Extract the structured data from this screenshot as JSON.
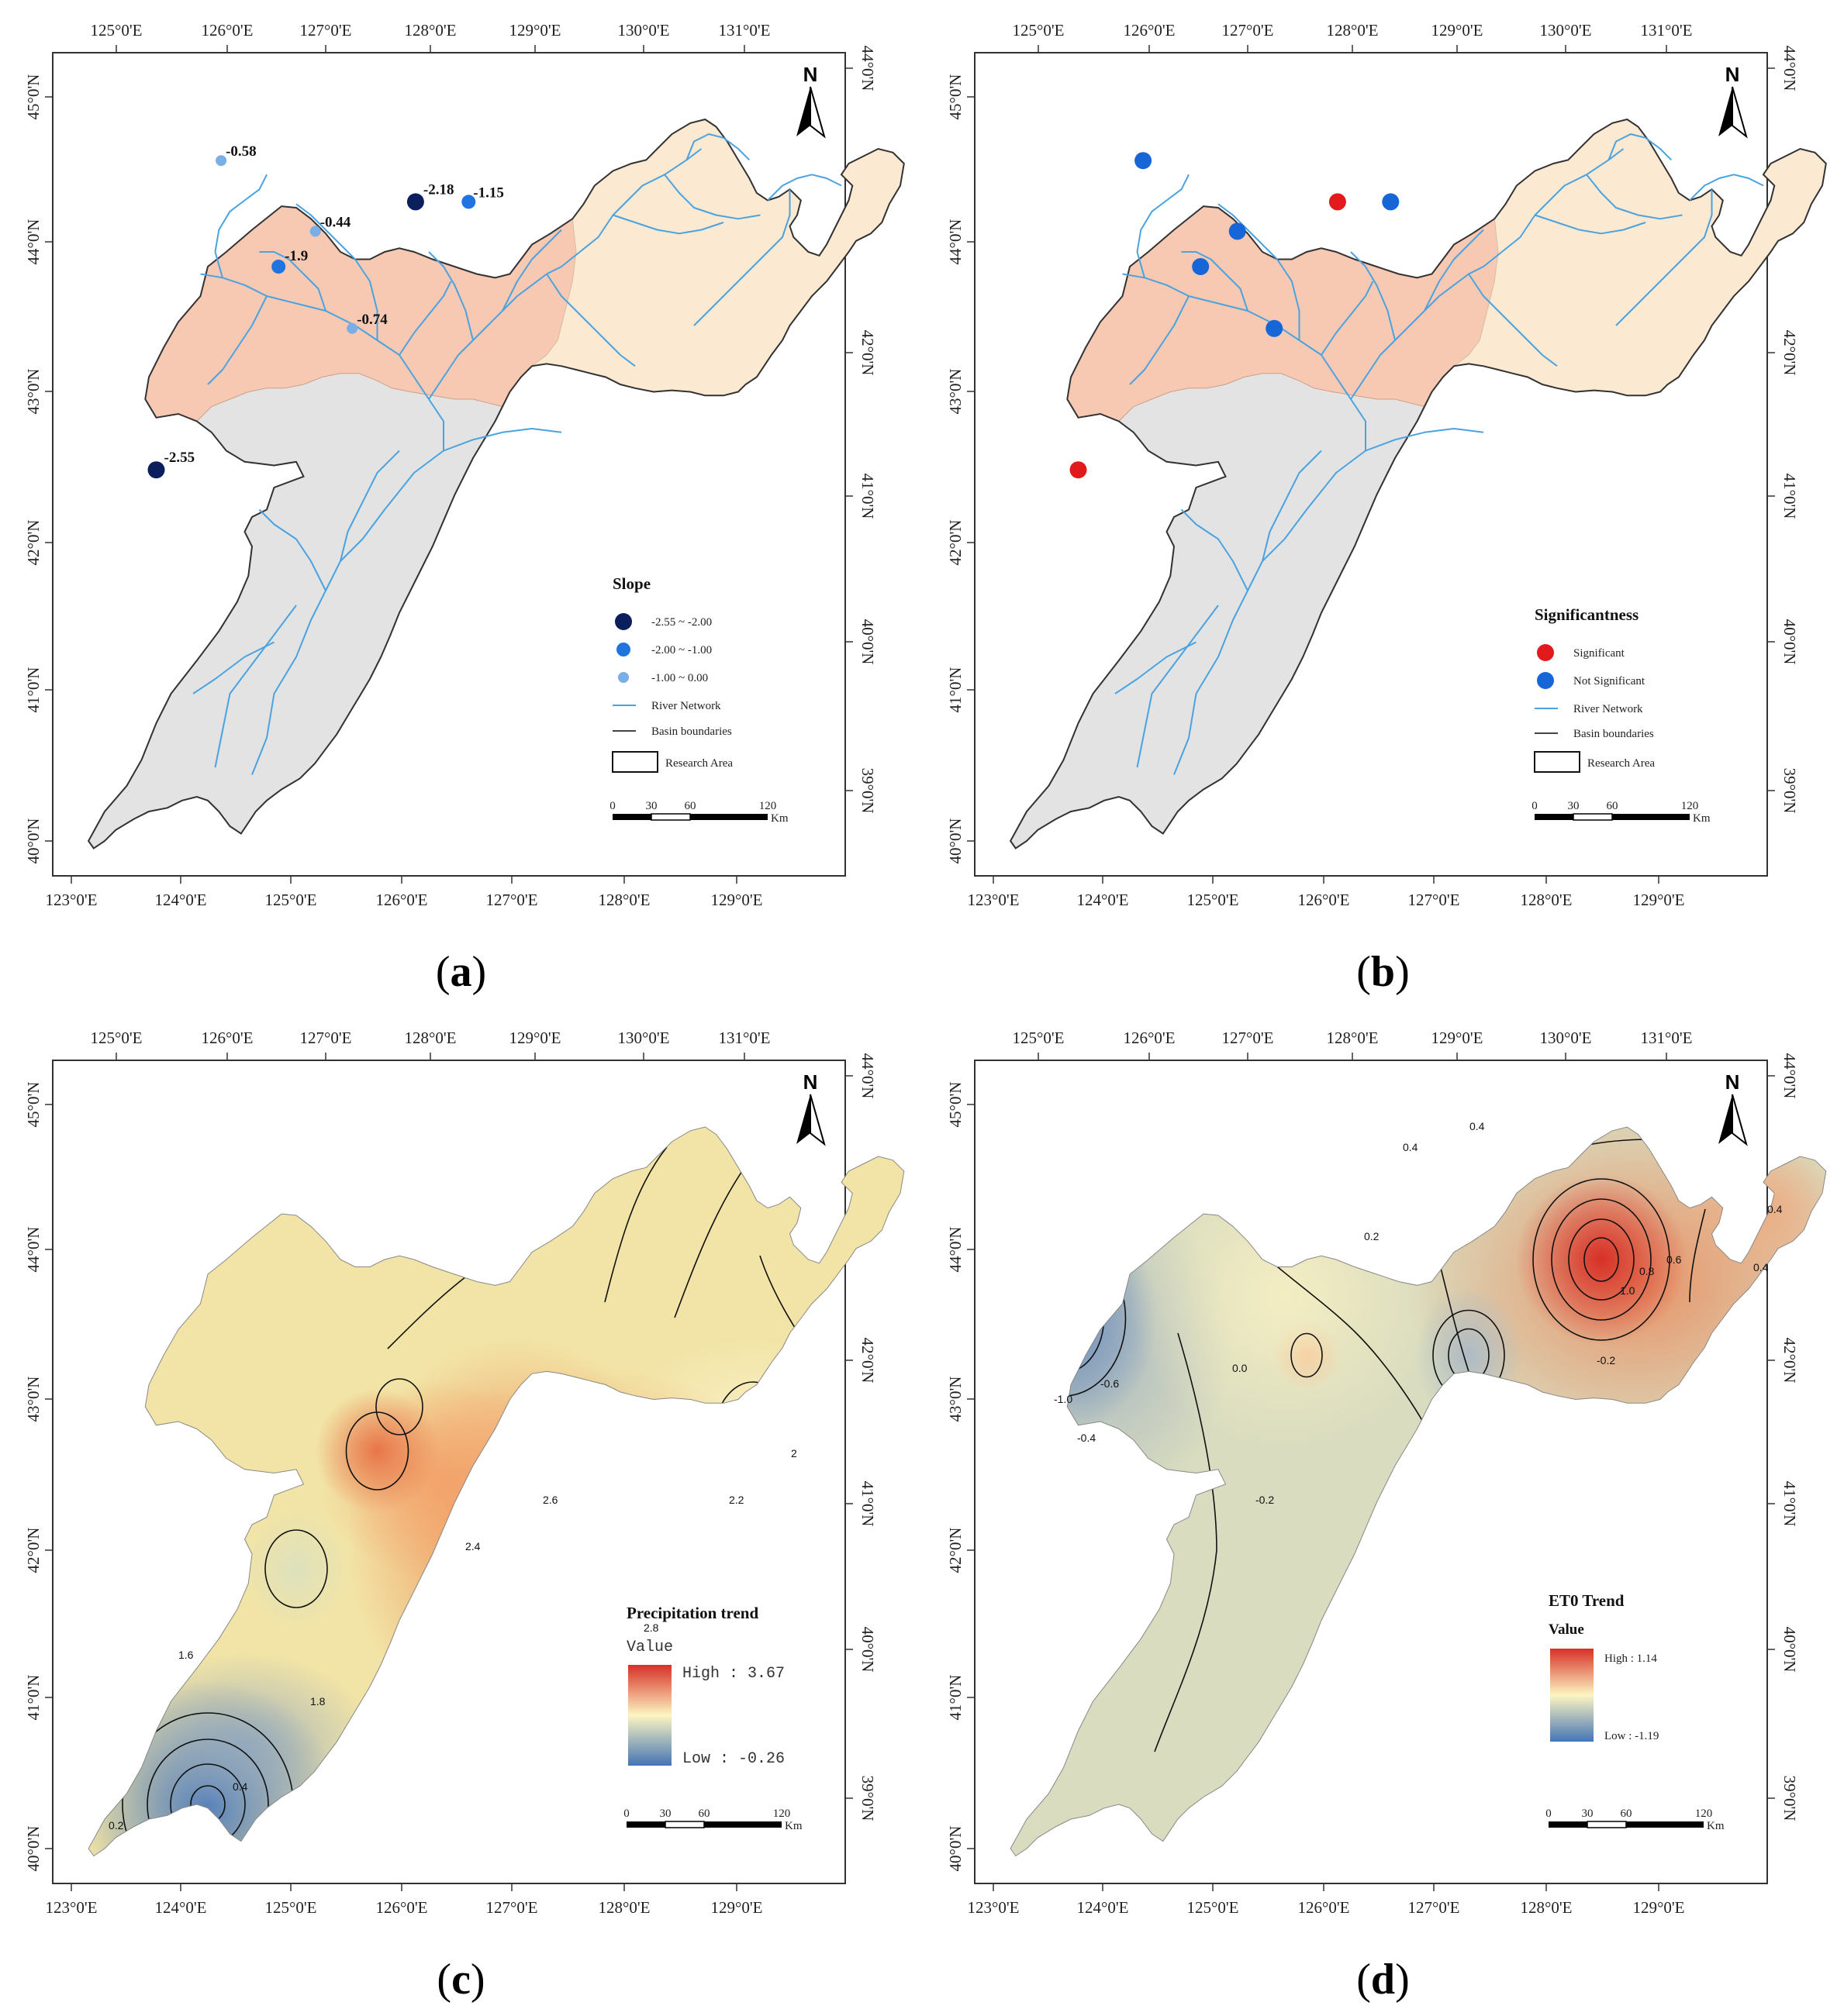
{
  "axes": {
    "top_lon": [
      "125°0'E",
      "126°0'E",
      "127°0'E",
      "128°0'E",
      "129°0'E",
      "130°0'E",
      "131°0'E"
    ],
    "bottom_lon": [
      "123°0'E",
      "124°0'E",
      "125°0'E",
      "126°0'E",
      "127°0'E",
      "128°0'E",
      "129°0'E"
    ],
    "left_lat": [
      "45°0'N",
      "44°0'N",
      "43°0'N",
      "42°0'N",
      "41°0'N",
      "40°0'N"
    ],
    "right_lat": [
      "44°0'N",
      "43°0'N",
      "42°0'N",
      "41°0'N",
      "40°0'N",
      "39°0'N"
    ],
    "north": "N"
  },
  "panels": {
    "a": {
      "caption_letter": "a",
      "legend": {
        "title": "Slope",
        "classes": [
          {
            "label": "-2.55 ~ -2.00",
            "color": "#0b1f5c"
          },
          {
            "label": "-2.00 ~ -1.00",
            "color": "#1f74e0"
          },
          {
            "label": "-1.00 ~ 0.00",
            "color": "#7aaee6"
          }
        ],
        "river": "River Network",
        "basin": "Basin boundaries",
        "area": "Research Area"
      },
      "stations": [
        {
          "label": "-0.58",
          "class": 2
        },
        {
          "label": "-2.18",
          "class": 0
        },
        {
          "label": "-1.15",
          "class": 1
        },
        {
          "label": "-0.44",
          "class": 2
        },
        {
          "label": "-1.9",
          "class": 1
        },
        {
          "label": "-0.74",
          "class": 2
        },
        {
          "label": "-2.55",
          "class": 0
        }
      ]
    },
    "b": {
      "caption_letter": "b",
      "legend": {
        "title": "Significantness",
        "significant": "Significant",
        "not_significant": "Not Significant",
        "significant_color": "#e31a1c",
        "not_significant_color": "#1766d8",
        "river": "River Network",
        "basin": "Basin boundaries",
        "area": "Research Area"
      }
    },
    "c": {
      "caption_letter": "c",
      "legend": {
        "title": "Precipitation trend",
        "value": "Value",
        "high": "High : 3.67",
        "low": "Low : -0.26"
      }
    },
    "d": {
      "caption_letter": "d",
      "legend": {
        "title": "ET0 Trend",
        "value": "Value",
        "high": "High : 1.14",
        "low": "Low : -1.19"
      }
    }
  },
  "scalebar": {
    "ticks": [
      "0",
      "30",
      "60",
      "120"
    ],
    "unit": "Km"
  },
  "colors": {
    "upper_basin": "#f7c9b3",
    "mid_basin": "#fbe9d1",
    "lower_basin": "#e3e3e3",
    "river": "#4aa3e0",
    "trend_high": "#d73027",
    "trend_mid": "#fdf5c2",
    "trend_low": "#4575b4"
  }
}
